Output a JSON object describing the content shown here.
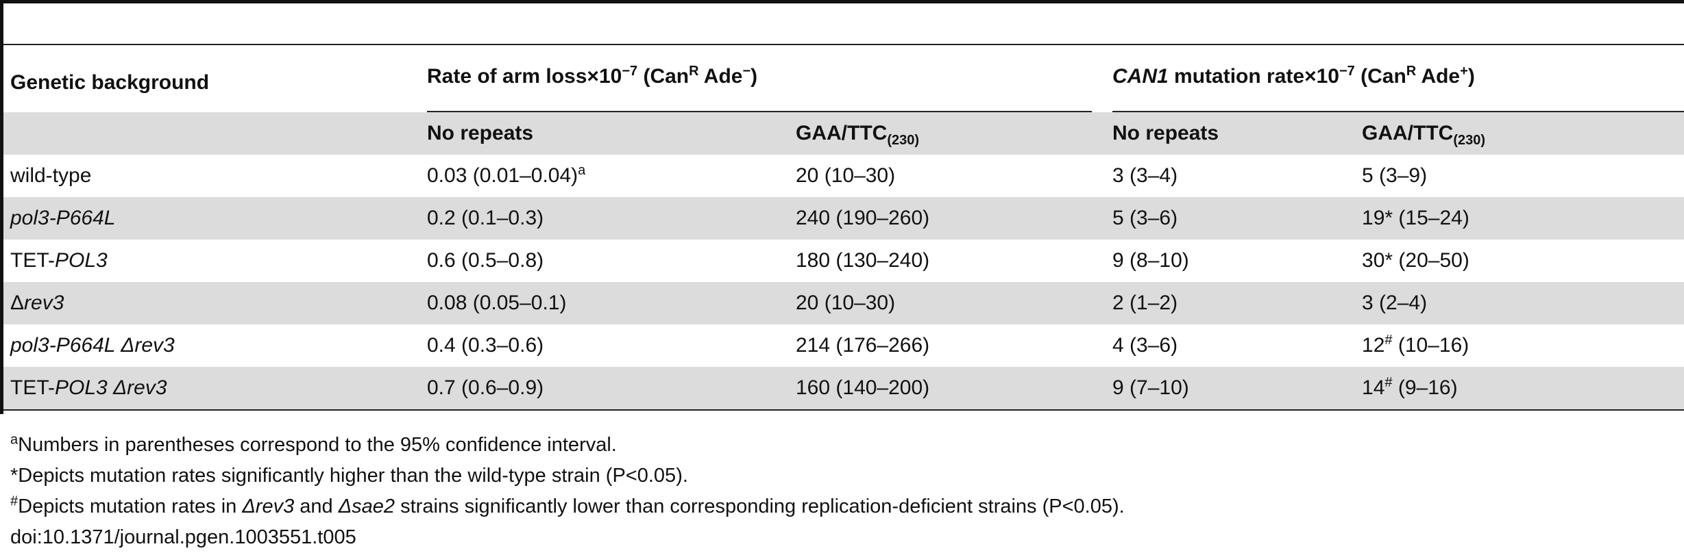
{
  "table": {
    "header": {
      "genetic_background": "Genetic background",
      "arm_loss": {
        "prefix": "Rate of arm loss",
        "times": "×10",
        "exp": "−7",
        "paren_open": " (Can",
        "R": "R",
        "ade": " Ade",
        "sign": "−",
        "paren_close": ")"
      },
      "can1": {
        "gene": "CAN1",
        "text": " mutation rate",
        "times": "×10",
        "exp": "−7",
        "paren_open": " (Can",
        "R": "R",
        "ade": " Ade",
        "sign": "+",
        "paren_close": ")"
      },
      "sub_headers": {
        "no_repeats": "No repeats",
        "gaa": "GAA/TTC",
        "gaa_sub": "(230)"
      }
    },
    "rows": [
      {
        "bg": [
          {
            "t": "wild-type",
            "i": false
          }
        ],
        "c1": "0.03 (0.01–0.04)",
        "c1_sup": "a",
        "c2": "20 (10–30)",
        "c3": "3 (3–4)",
        "c4_pre": "5",
        "c4_sup": "",
        "c4_post": " (3–9)"
      },
      {
        "bg": [
          {
            "t": "pol3-P664L",
            "i": true
          }
        ],
        "c1": "0.2 (0.1–0.3)",
        "c1_sup": "",
        "c2": "240 (190–260)",
        "c3": "5 (3–6)",
        "c4_pre": "19* ",
        "c4_sup": "",
        "c4_post": "(15–24)"
      },
      {
        "bg": [
          {
            "t": "TET-",
            "i": false
          },
          {
            "t": "POL3",
            "i": true
          }
        ],
        "c1": "0.6 (0.5–0.8)",
        "c1_sup": "",
        "c2": "180 (130–240)",
        "c3": "9 (8–10)",
        "c4_pre": "30* ",
        "c4_sup": "",
        "c4_post": "(20–50)"
      },
      {
        "bg": [
          {
            "t": "Δ",
            "i": false
          },
          {
            "t": "rev3",
            "i": true
          }
        ],
        "c1": "0.08 (0.05–0.1)",
        "c1_sup": "",
        "c2": "20 (10–30)",
        "c3": "2 (1–2)",
        "c4_pre": "3",
        "c4_sup": "",
        "c4_post": " (2–4)"
      },
      {
        "bg": [
          {
            "t": "pol3-P664L Δrev3",
            "i": true
          }
        ],
        "c1": "0.4 (0.3–0.6)",
        "c1_sup": "",
        "c2": "214 (176–266)",
        "c3": "4 (3–6)",
        "c4_pre": "12",
        "c4_sup": "#",
        "c4_post": " (10–16)"
      },
      {
        "bg": [
          {
            "t": "TET-",
            "i": false
          },
          {
            "t": "POL3 Δrev3",
            "i": true
          }
        ],
        "c1": "0.7 (0.6–0.9)",
        "c1_sup": "",
        "c2": "160 (140–200)",
        "c3": "9 (7–10)",
        "c4_pre": "14",
        "c4_sup": "#",
        "c4_post": " (9–16)"
      }
    ]
  },
  "notes": {
    "a": {
      "mark": "a",
      "text": "Numbers in parentheses correspond to the 95% confidence interval."
    },
    "star": {
      "text": "*Depicts mutation rates significantly higher than the wild-type strain (P<0.05)."
    },
    "hash": {
      "mark": "#",
      "pre": "Depicts mutation rates in ",
      "rev3": "Δrev3",
      "mid": " and ",
      "sae2": "Δsae2",
      "post": " strains significantly lower than corresponding replication-deficient strains (P<0.05)."
    },
    "doi": "doi:10.1371/journal.pgen.1003551.t005"
  }
}
